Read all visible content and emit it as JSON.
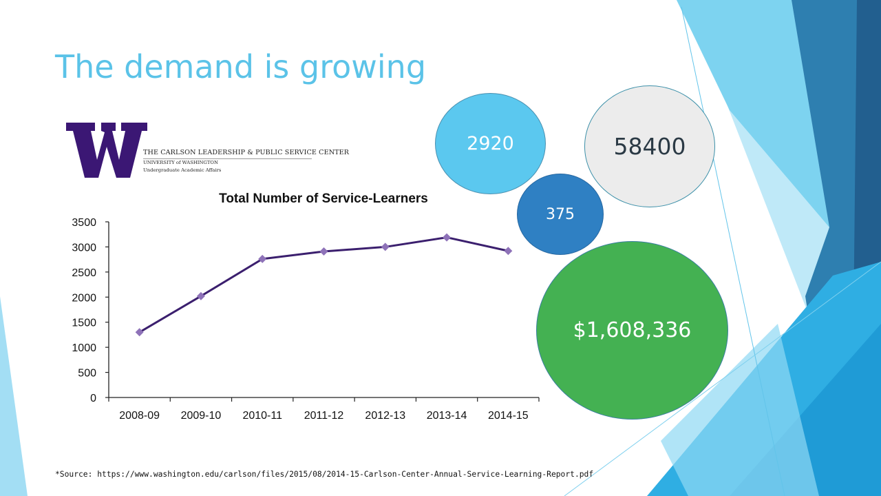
{
  "slide": {
    "title": "The demand is growing",
    "source_note": "*Source: https://www.washington.edu/carlson/files/2015/08/2014-15-Carlson-Center-Annual-Service-Learning-Report.pdf"
  },
  "logo": {
    "letter": "W",
    "line1": "THE CARLSON LEADERSHIP & PUBLIC SERVICE CENTER",
    "line2": "UNIVERSITY of WASHINGTON",
    "line3": "Undergraduate Academic Affairs",
    "color": "#3b1774"
  },
  "bubbles": [
    {
      "value": "2920",
      "color": "#5bc8ef"
    },
    {
      "value": "58400",
      "color": "#ececec"
    },
    {
      "value": "375",
      "color": "#2f80c3"
    },
    {
      "value": "$1,608,336",
      "color": "#44b152"
    }
  ],
  "chart_data": {
    "type": "line",
    "title": "Total Number of Service-Learners",
    "xlabel": "",
    "ylabel": "",
    "categories": [
      "2008-09",
      "2009-10",
      "2010-11",
      "2011-12",
      "2012-13",
      "2013-14",
      "2014-15"
    ],
    "series": [
      {
        "values": [
          1300,
          2020,
          2760,
          2910,
          3000,
          3190,
          2920
        ],
        "color": "#3b1f6e",
        "marker_color": "#8e72b8"
      }
    ],
    "ylim": [
      0,
      3500
    ],
    "yticks": [
      0,
      500,
      1000,
      1500,
      2000,
      2500,
      3000,
      3500
    ],
    "ytick_labels": [
      "0",
      "500",
      "1000",
      "1500",
      "2000",
      "2500",
      "3000",
      "3500"
    ],
    "grid": false,
    "legend": "none"
  },
  "theme": {
    "accent": "#5bc3e8",
    "light_blue": "#7dd3f0",
    "mid_blue": "#2aa7dc",
    "dark_blue": "#1f6ea3"
  }
}
